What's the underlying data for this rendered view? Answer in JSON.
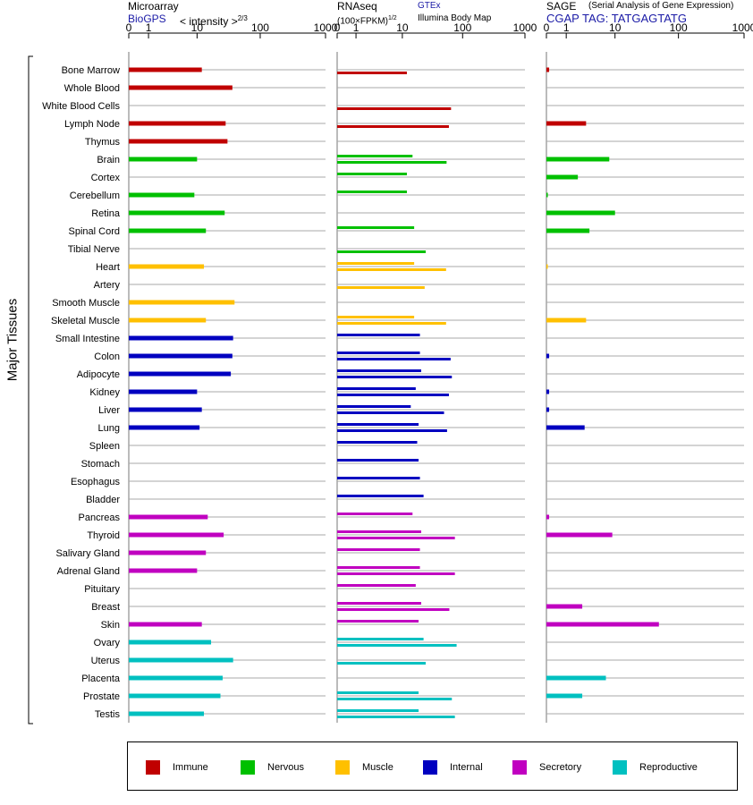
{
  "headers": {
    "microarray": {
      "title": "Microarray",
      "source": "BioGPS",
      "units_main": "< intensity >",
      "units_exp": "2/3"
    },
    "rnaseq": {
      "title": "RNAseq",
      "source_a": "GTEx",
      "source_b": "Illumina Body Map",
      "units_main": "(100×FPKM)",
      "units_exp": "1/2"
    },
    "sage": {
      "title": "SAGE",
      "subtitle": "(Serial Analysis of Gene Expression)",
      "tag": "CGAP TAG: TATGAGTATG"
    }
  },
  "y_axis_label": "Major Tissues",
  "legend": [
    {
      "label": "Immune",
      "color": "#c00000"
    },
    {
      "label": "Nervous",
      "color": "#00c000"
    },
    {
      "label": "Muscle",
      "color": "#ffc000"
    },
    {
      "label": "Internal",
      "color": "#0000c0"
    },
    {
      "label": "Secretory",
      "color": "#c000c0"
    },
    {
      "label": "Reproductive",
      "color": "#00c0c0"
    }
  ],
  "chart_data": {
    "type": "bar",
    "x_scale": "log1p",
    "x_ticks": [
      0,
      1,
      10,
      100,
      1000
    ],
    "xlim": [
      0,
      1000
    ],
    "categories": [
      "Bone Marrow",
      "Whole Blood",
      "White Blood Cells",
      "Lymph Node",
      "Thymus",
      "Brain",
      "Cortex",
      "Cerebellum",
      "Retina",
      "Spinal Cord",
      "Tibial Nerve",
      "Heart",
      "Artery",
      "Smooth Muscle",
      "Skeletal Muscle",
      "Small Intestine",
      "Colon",
      "Adipocyte",
      "Kidney",
      "Liver",
      "Lung",
      "Spleen",
      "Stomach",
      "Esophagus",
      "Bladder",
      "Pancreas",
      "Thyroid",
      "Salivary Gland",
      "Adrenal Gland",
      "Pituitary",
      "Breast",
      "Skin",
      "Ovary",
      "Uterus",
      "Placenta",
      "Prostate",
      "Testis"
    ],
    "groups": [
      "Immune",
      "Immune",
      "Immune",
      "Immune",
      "Immune",
      "Nervous",
      "Nervous",
      "Nervous",
      "Nervous",
      "Nervous",
      "Nervous",
      "Muscle",
      "Muscle",
      "Muscle",
      "Muscle",
      "Internal",
      "Internal",
      "Internal",
      "Internal",
      "Internal",
      "Internal",
      "Internal",
      "Internal",
      "Internal",
      "Internal",
      "Secretory",
      "Secretory",
      "Secretory",
      "Secretory",
      "Secretory",
      "Secretory",
      "Secretory",
      "Reproductive",
      "Reproductive",
      "Reproductive",
      "Reproductive",
      "Reproductive"
    ],
    "series": [
      {
        "name": "Microarray",
        "values": [
          12,
          37,
          null,
          29,
          31,
          10,
          null,
          9,
          28,
          14,
          null,
          13,
          null,
          40,
          14,
          38,
          37,
          35,
          10,
          12,
          11,
          null,
          null,
          null,
          null,
          15,
          27,
          14,
          10,
          null,
          null,
          12,
          17,
          38,
          26,
          24,
          13
        ]
      },
      {
        "name": "GTEx",
        "values": [
          null,
          null,
          null,
          null,
          null,
          15,
          12,
          12,
          null,
          16,
          null,
          16,
          null,
          null,
          16,
          20,
          20,
          21,
          17,
          14,
          19,
          18,
          19,
          20,
          23,
          15,
          21,
          20,
          20,
          17,
          21,
          19,
          23,
          null,
          null,
          19,
          19
        ]
      },
      {
        "name": "Illumina Body Map",
        "values": [
          12,
          null,
          65,
          60,
          null,
          55,
          null,
          null,
          null,
          null,
          25,
          54,
          24,
          null,
          54,
          null,
          64,
          67,
          60,
          50,
          56,
          null,
          null,
          null,
          null,
          null,
          75,
          null,
          75,
          null,
          61,
          null,
          80,
          25,
          null,
          67,
          75
        ]
      },
      {
        "name": "SAGE",
        "values": [
          0.1,
          null,
          null,
          3,
          null,
          8,
          2,
          0.05,
          10,
          3.5,
          null,
          0.02,
          null,
          null,
          3,
          null,
          0.1,
          null,
          0.1,
          0.1,
          2.8,
          null,
          null,
          null,
          null,
          0.1,
          9,
          null,
          null,
          null,
          2.5,
          50,
          null,
          null,
          7,
          2.5,
          null
        ]
      }
    ]
  }
}
